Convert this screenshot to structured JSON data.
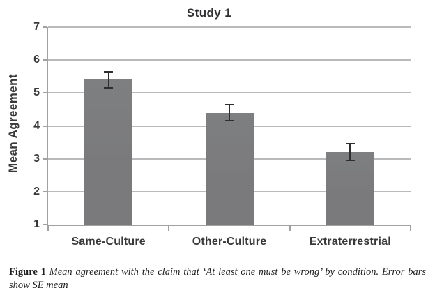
{
  "caption": {
    "label": "Figure 1",
    "text": "Mean agreement with the claim that ‘At least one must be wrong’ by condition. Error bars show SE mean"
  },
  "chart_data": {
    "type": "bar",
    "title": "Study 1",
    "xlabel": "",
    "ylabel": "Mean Agreement",
    "categories": [
      "Same-Culture",
      "Other-Culture",
      "Extraterrestrial"
    ],
    "values": [
      5.4,
      4.4,
      3.2
    ],
    "errors": [
      0.25,
      0.25,
      0.25
    ],
    "error_bar_type": "SE mean",
    "ylim": [
      1,
      7
    ],
    "yticks": [
      1,
      2,
      3,
      4,
      5,
      6,
      7
    ],
    "grid": true,
    "legend": "none",
    "colors": {
      "bar": "#7a7a7c",
      "gridline": "#b8babc",
      "axis": "#9fa1a3",
      "error_bar": "#2e2e30",
      "text": "#39393b"
    }
  }
}
